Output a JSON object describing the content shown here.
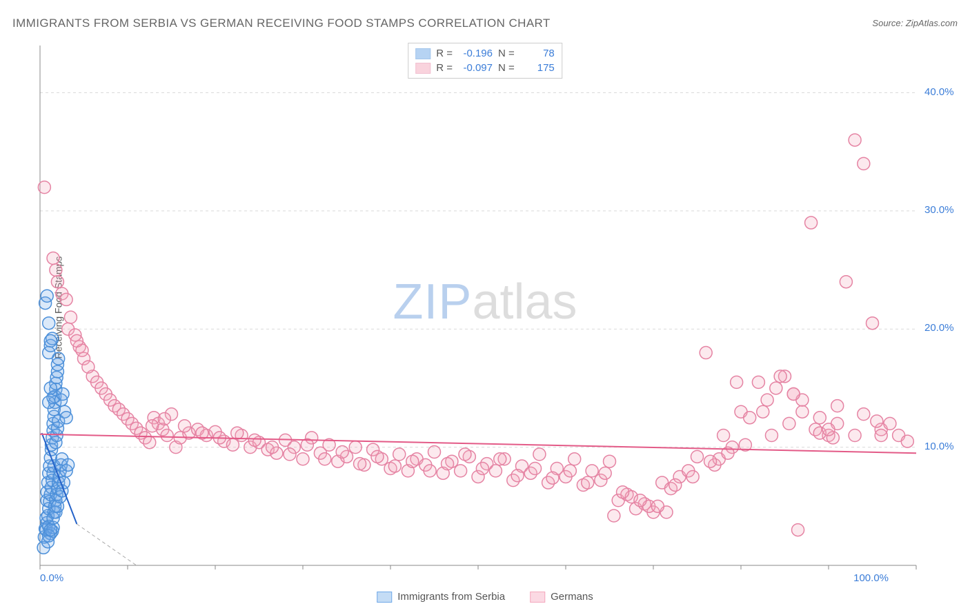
{
  "title": "IMMIGRANTS FROM SERBIA VS GERMAN RECEIVING FOOD STAMPS CORRELATION CHART",
  "source_label": "Source:",
  "source_name": "ZipAtlas.com",
  "ylabel": "Receiving Food Stamps",
  "watermark_zip": "ZIP",
  "watermark_atlas": "atlas",
  "chart": {
    "type": "scatter",
    "background_color": "#ffffff",
    "grid_color": "#d9d9d9",
    "grid_dash": "4,4",
    "axis_color": "#888888",
    "tick_color": "#888888",
    "xlim": [
      0,
      100
    ],
    "ylim": [
      0,
      44
    ],
    "xtick_labels": {
      "0": "0.0%",
      "100": "100.0%"
    },
    "xtick_minor_step": 10,
    "ytick_labels": {
      "10": "10.0%",
      "20": "20.0%",
      "30": "30.0%",
      "40": "40.0%"
    },
    "ygrid_lines": [
      10,
      20,
      30,
      40
    ],
    "marker_radius": 9,
    "marker_stroke_width": 1.5,
    "marker_fill_opacity": 0.25,
    "trend_stroke_width": 2,
    "label_fontsize": 14,
    "tick_fontsize": 15,
    "tick_label_color": "#3b7dd8"
  },
  "series": [
    {
      "id": "serbia",
      "label": "Immigrants from Serbia",
      "color": "#6fa8e8",
      "stroke": "#4b8fd9",
      "trend_color": "#2563c9",
      "trend_dash_extension_color": "#aaaaaa",
      "stats": {
        "R_label": "R =",
        "R": "-0.196",
        "N_label": "N =",
        "N": "78"
      },
      "trend": {
        "x1": 0.2,
        "y1": 11.2,
        "x2": 4.2,
        "y2": 3.5,
        "dash_x2": 11,
        "dash_y2": -9
      },
      "points": [
        [
          0.4,
          1.5
        ],
        [
          0.5,
          2.4
        ],
        [
          0.6,
          3.1
        ],
        [
          0.7,
          4.0
        ],
        [
          0.8,
          5.5
        ],
        [
          0.8,
          6.2
        ],
        [
          0.9,
          7.0
        ],
        [
          1.0,
          7.8
        ],
        [
          1.1,
          8.4
        ],
        [
          1.2,
          9.1
        ],
        [
          1.3,
          9.8
        ],
        [
          1.3,
          10.2
        ],
        [
          1.4,
          10.8
        ],
        [
          1.5,
          11.4
        ],
        [
          1.5,
          12.0
        ],
        [
          1.6,
          12.6
        ],
        [
          1.6,
          13.2
        ],
        [
          1.7,
          13.8
        ],
        [
          1.7,
          14.3
        ],
        [
          1.8,
          14.9
        ],
        [
          1.8,
          15.4
        ],
        [
          1.9,
          15.9
        ],
        [
          2.0,
          16.4
        ],
        [
          2.0,
          17.0
        ],
        [
          2.1,
          17.5
        ],
        [
          1.0,
          18.0
        ],
        [
          1.2,
          18.6
        ],
        [
          1.4,
          19.2
        ],
        [
          0.7,
          3.0
        ],
        [
          0.8,
          3.6
        ],
        [
          0.9,
          4.2
        ],
        [
          1.0,
          4.8
        ],
        [
          1.1,
          5.4
        ],
        [
          1.2,
          6.0
        ],
        [
          1.3,
          6.6
        ],
        [
          1.4,
          7.2
        ],
        [
          1.5,
          7.8
        ],
        [
          1.6,
          8.4
        ],
        [
          1.0,
          3.3
        ],
        [
          1.2,
          2.7
        ],
        [
          1.4,
          2.9
        ],
        [
          1.5,
          3.2
        ],
        [
          1.6,
          4.5
        ],
        [
          1.7,
          5.0
        ],
        [
          1.8,
          5.5
        ],
        [
          1.9,
          6.0
        ],
        [
          2.0,
          6.5
        ],
        [
          2.1,
          7.0
        ],
        [
          2.2,
          7.5
        ],
        [
          2.3,
          8.0
        ],
        [
          2.4,
          8.5
        ],
        [
          2.5,
          9.0
        ],
        [
          1.8,
          10.4
        ],
        [
          1.9,
          11.0
        ],
        [
          2.0,
          11.6
        ],
        [
          2.1,
          12.2
        ],
        [
          1.0,
          13.8
        ],
        [
          1.5,
          14.2
        ],
        [
          1.2,
          15.0
        ],
        [
          0.9,
          2.0
        ],
        [
          1.0,
          2.5
        ],
        [
          1.2,
          3.0
        ],
        [
          1.5,
          4.0
        ],
        [
          1.8,
          4.5
        ],
        [
          2.0,
          5.0
        ],
        [
          2.3,
          5.8
        ],
        [
          2.5,
          6.3
        ],
        [
          2.7,
          7.0
        ],
        [
          3.0,
          8.0
        ],
        [
          3.2,
          8.5
        ],
        [
          0.6,
          22.2
        ],
        [
          0.8,
          22.8
        ],
        [
          1.0,
          20.5
        ],
        [
          1.2,
          19.0
        ],
        [
          2.4,
          14.0
        ],
        [
          2.6,
          14.5
        ],
        [
          2.8,
          13.0
        ],
        [
          3.0,
          12.5
        ]
      ]
    },
    {
      "id": "germans",
      "label": "Germans",
      "color": "#f4a8bd",
      "stroke": "#e583a3",
      "trend_color": "#e35a87",
      "stats": {
        "R_label": "R =",
        "R": "-0.097",
        "N_label": "N =",
        "N": "175"
      },
      "trend": {
        "x1": 0,
        "y1": 11.1,
        "x2": 100,
        "y2": 9.5
      },
      "points": [
        [
          0.5,
          32.0
        ],
        [
          1.5,
          26.0
        ],
        [
          1.8,
          25.0
        ],
        [
          2.0,
          24.0
        ],
        [
          2.5,
          23.0
        ],
        [
          3.0,
          22.5
        ],
        [
          3.5,
          21.0
        ],
        [
          3.2,
          20.0
        ],
        [
          4.0,
          19.5
        ],
        [
          4.5,
          18.5
        ],
        [
          5.0,
          17.5
        ],
        [
          4.8,
          18.2
        ],
        [
          6.0,
          16.0
        ],
        [
          6.5,
          15.5
        ],
        [
          7.0,
          15.0
        ],
        [
          7.5,
          14.5
        ],
        [
          8.0,
          14.0
        ],
        [
          8.5,
          13.5
        ],
        [
          9.0,
          13.2
        ],
        [
          9.5,
          12.8
        ],
        [
          10.0,
          12.4
        ],
        [
          10.5,
          12.0
        ],
        [
          11.0,
          11.6
        ],
        [
          11.5,
          11.2
        ],
        [
          12.0,
          10.8
        ],
        [
          12.5,
          10.4
        ],
        [
          13.0,
          12.5
        ],
        [
          13.5,
          12.0
        ],
        [
          14.0,
          11.5
        ],
        [
          14.5,
          11.0
        ],
        [
          15.0,
          12.8
        ],
        [
          15.5,
          10.0
        ],
        [
          16.0,
          10.8
        ],
        [
          17.0,
          11.2
        ],
        [
          18.0,
          11.5
        ],
        [
          19.0,
          11.0
        ],
        [
          20.0,
          11.3
        ],
        [
          21.0,
          10.5
        ],
        [
          22.0,
          10.2
        ],
        [
          23.0,
          11.0
        ],
        [
          24.0,
          10.0
        ],
        [
          25.0,
          10.4
        ],
        [
          26.0,
          9.8
        ],
        [
          27.0,
          9.5
        ],
        [
          28.0,
          10.6
        ],
        [
          29.0,
          10.0
        ],
        [
          30.0,
          9.0
        ],
        [
          31.0,
          10.8
        ],
        [
          32.0,
          9.5
        ],
        [
          33.0,
          10.2
        ],
        [
          34.0,
          8.8
        ],
        [
          35.0,
          9.2
        ],
        [
          36.0,
          10.0
        ],
        [
          37.0,
          8.5
        ],
        [
          38.0,
          9.8
        ],
        [
          39.0,
          9.0
        ],
        [
          40.0,
          8.2
        ],
        [
          41.0,
          9.4
        ],
        [
          42.0,
          8.0
        ],
        [
          43.0,
          9.0
        ],
        [
          44.0,
          8.5
        ],
        [
          45.0,
          9.6
        ],
        [
          46.0,
          7.8
        ],
        [
          47.0,
          8.8
        ],
        [
          48.0,
          8.0
        ],
        [
          49.0,
          9.2
        ],
        [
          50.0,
          7.5
        ],
        [
          51.0,
          8.6
        ],
        [
          52.0,
          8.0
        ],
        [
          53.0,
          9.0
        ],
        [
          54.0,
          7.2
        ],
        [
          55.0,
          8.4
        ],
        [
          56.0,
          7.8
        ],
        [
          57.0,
          9.4
        ],
        [
          58.0,
          7.0
        ],
        [
          59.0,
          8.2
        ],
        [
          60.0,
          7.5
        ],
        [
          61.0,
          9.0
        ],
        [
          62.0,
          6.8
        ],
        [
          63.0,
          8.0
        ],
        [
          64.0,
          7.2
        ],
        [
          65.0,
          8.8
        ],
        [
          66.0,
          5.5
        ],
        [
          67.0,
          6.0
        ],
        [
          68.0,
          4.8
        ],
        [
          69.0,
          5.2
        ],
        [
          70.0,
          4.5
        ],
        [
          71.0,
          7.0
        ],
        [
          72.0,
          6.5
        ],
        [
          73.0,
          7.5
        ],
        [
          74.0,
          8.0
        ],
        [
          75.0,
          9.2
        ],
        [
          76.0,
          18.0
        ],
        [
          77.0,
          8.5
        ],
        [
          78.0,
          11.0
        ],
        [
          79.0,
          10.0
        ],
        [
          80.0,
          13.0
        ],
        [
          81.0,
          12.5
        ],
        [
          82.0,
          15.5
        ],
        [
          83.0,
          14.0
        ],
        [
          84.0,
          15.0
        ],
        [
          85.0,
          16.0
        ],
        [
          86.0,
          14.5
        ],
        [
          87.0,
          13.0
        ],
        [
          88.0,
          29.0
        ],
        [
          89.0,
          12.5
        ],
        [
          90.0,
          11.0
        ],
        [
          91.0,
          12.0
        ],
        [
          92.0,
          24.0
        ],
        [
          93.0,
          36.0
        ],
        [
          94.0,
          34.0
        ],
        [
          95.0,
          20.5
        ],
        [
          96.0,
          11.5
        ],
        [
          97.0,
          12.0
        ],
        [
          98.0,
          11.0
        ],
        [
          99.0,
          10.5
        ],
        [
          95.5,
          12.2
        ],
        [
          90.5,
          10.8
        ],
        [
          88.5,
          11.5
        ],
        [
          86.5,
          3.0
        ],
        [
          84.5,
          16.0
        ],
        [
          82.5,
          13.0
        ],
        [
          79.5,
          15.5
        ],
        [
          77.5,
          9.0
        ],
        [
          71.5,
          4.5
        ],
        [
          69.5,
          5.0
        ],
        [
          67.5,
          5.8
        ],
        [
          65.5,
          4.2
        ],
        [
          96.0,
          11.0
        ],
        [
          94.0,
          12.8
        ],
        [
          91.0,
          13.5
        ],
        [
          89.0,
          11.2
        ],
        [
          87.0,
          14.0
        ],
        [
          86.0,
          14.5
        ],
        [
          12.8,
          11.8
        ],
        [
          14.2,
          12.4
        ],
        [
          16.5,
          11.8
        ],
        [
          18.5,
          11.2
        ],
        [
          20.5,
          10.8
        ],
        [
          22.5,
          11.2
        ],
        [
          24.5,
          10.6
        ],
        [
          26.5,
          10.0
        ],
        [
          28.5,
          9.4
        ],
        [
          30.5,
          10.2
        ],
        [
          32.5,
          9.0
        ],
        [
          34.5,
          9.6
        ],
        [
          36.5,
          8.6
        ],
        [
          38.5,
          9.2
        ],
        [
          40.5,
          8.4
        ],
        [
          42.5,
          8.8
        ],
        [
          44.5,
          8.0
        ],
        [
          46.5,
          8.6
        ],
        [
          48.5,
          9.4
        ],
        [
          50.5,
          8.2
        ],
        [
          52.5,
          9.0
        ],
        [
          54.5,
          7.6
        ],
        [
          56.5,
          8.2
        ],
        [
          58.5,
          7.4
        ],
        [
          60.5,
          8.0
        ],
        [
          62.5,
          7.0
        ],
        [
          64.5,
          7.8
        ],
        [
          66.5,
          6.2
        ],
        [
          68.5,
          5.5
        ],
        [
          70.5,
          5.0
        ],
        [
          72.5,
          6.8
        ],
        [
          74.5,
          7.5
        ],
        [
          76.5,
          8.8
        ],
        [
          78.5,
          9.5
        ],
        [
          80.5,
          10.2
        ],
        [
          83.5,
          11.0
        ],
        [
          85.5,
          12.0
        ],
        [
          90.0,
          11.5
        ],
        [
          93.0,
          11.0
        ],
        [
          4.2,
          19.0
        ],
        [
          5.5,
          16.8
        ]
      ]
    }
  ],
  "legend_bottom": [
    {
      "label": "Immigrants from Serbia",
      "fill": "#c4dcf5",
      "stroke": "#6fa8e8"
    },
    {
      "label": "Germans",
      "fill": "#fbd9e3",
      "stroke": "#f4a8bd"
    }
  ]
}
